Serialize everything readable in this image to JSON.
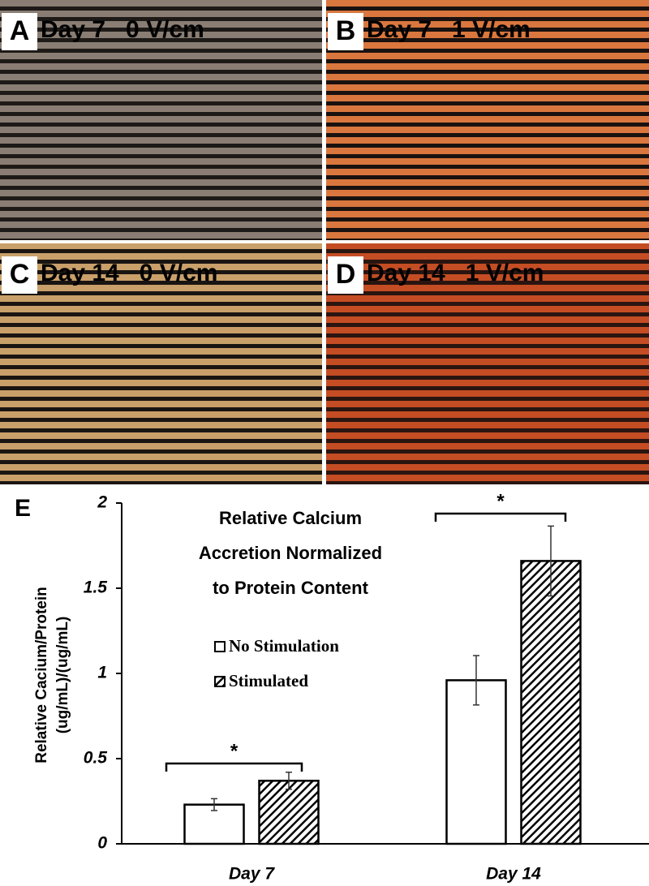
{
  "panels": [
    {
      "letter": "A",
      "caption": "Day 7   0 V/cm"
    },
    {
      "letter": "B",
      "caption": "Day 7   1 V/cm"
    },
    {
      "letter": "C",
      "caption": "Day 14   0 V/cm"
    },
    {
      "letter": "D",
      "caption": "Day 14   1 V/cm"
    }
  ],
  "chart_data": {
    "type": "bar",
    "panel_label": "E",
    "title": [
      "Relative Calcium",
      "Accretion Normalized",
      "to Protein Content"
    ],
    "y_label": [
      "Relative Cacium/Protein",
      "(ug/mL)/(ug/mL)"
    ],
    "categories": [
      "Day 7",
      "Day 14"
    ],
    "series": [
      {
        "name": "No Stimulation",
        "color": "#ffffff",
        "hatch": false,
        "values": [
          0.23,
          0.96
        ],
        "errors": [
          0.035,
          0.145
        ]
      },
      {
        "name": "Stimulated",
        "color": "#000000",
        "hatch": true,
        "values": [
          0.37,
          1.66
        ],
        "errors": [
          0.05,
          0.205
        ]
      }
    ],
    "annotations": [
      "*",
      "*"
    ],
    "ylim": [
      0,
      2
    ],
    "yticks": [
      0,
      0.5,
      1,
      1.5,
      2
    ]
  }
}
